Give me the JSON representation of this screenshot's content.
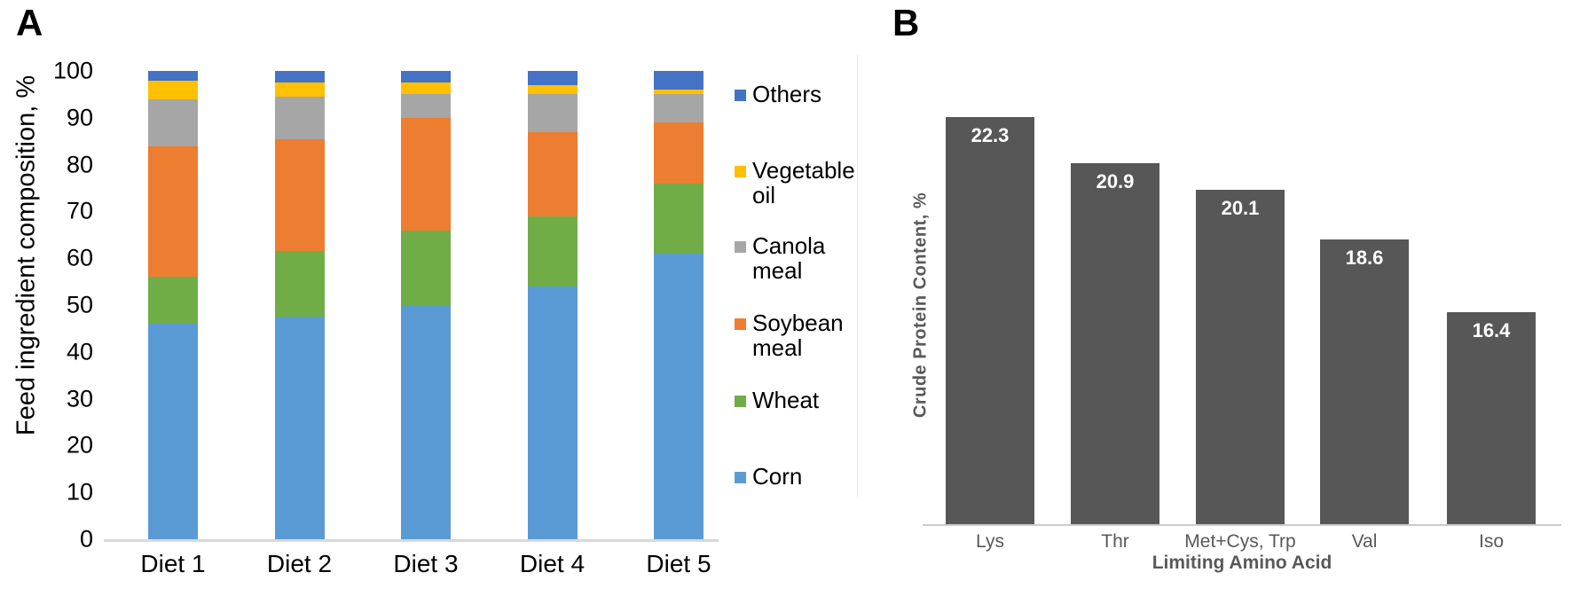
{
  "panels": {
    "a_label": "A",
    "b_label": "B"
  },
  "chart_data": [
    {
      "id": "A",
      "type": "stacked-bar",
      "title": "",
      "ylabel": "Feed ingredient composition, %",
      "xlabel": "",
      "ylim": [
        0,
        100
      ],
      "yticks": [
        0,
        10,
        20,
        30,
        40,
        50,
        60,
        70,
        80,
        90,
        100
      ],
      "grid": false,
      "legend_position": "right",
      "categories": [
        "Diet 1",
        "Diet 2",
        "Diet 3",
        "Diet 4",
        "Diet 5"
      ],
      "series": [
        {
          "name": "Corn",
          "color": "#5B9BD5",
          "values": [
            46,
            47.5,
            50,
            54,
            61
          ]
        },
        {
          "name": "Wheat",
          "color": "#70AD47",
          "values": [
            10,
            14,
            16,
            15,
            15
          ]
        },
        {
          "name": "Soybean meal",
          "color": "#ED7D31",
          "values": [
            28,
            24,
            24,
            18,
            13
          ]
        },
        {
          "name": "Canola meal",
          "color": "#A6A6A6",
          "values": [
            10,
            9,
            5,
            8,
            6
          ]
        },
        {
          "name": "Vegetable oil",
          "color": "#FFC000",
          "values": [
            4,
            3,
            2.5,
            2,
            1
          ]
        },
        {
          "name": "Others",
          "color": "#4472C4",
          "values": [
            2,
            2.5,
            2.5,
            3,
            4
          ]
        }
      ],
      "legend_order": [
        "Others",
        "Vegetable oil",
        "Canola meal",
        "Soybean meal",
        "Wheat",
        "Corn"
      ]
    },
    {
      "id": "B",
      "type": "bar",
      "title": "",
      "ylabel": "Crude Protein Content, %",
      "xlabel": "Limiting Amino Acid",
      "ylim": [
        10,
        23.7
      ],
      "grid": false,
      "bar_color": "#575757",
      "value_label_color": "#FFFFFF",
      "categories": [
        "Lys",
        "Thr",
        "Met+Cys, Trp",
        "Val",
        "Iso"
      ],
      "values": [
        22.3,
        20.9,
        20.1,
        18.6,
        16.4
      ],
      "value_labels": [
        "22.3",
        "20.9",
        "20.1",
        "18.6",
        "16.4"
      ]
    }
  ]
}
